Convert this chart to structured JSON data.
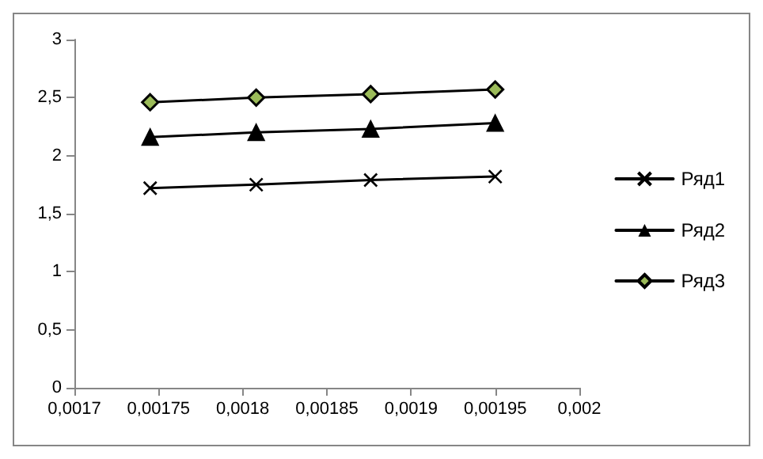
{
  "chart_data": {
    "type": "line",
    "xlim": [
      0.0017,
      0.002
    ],
    "xticks": [
      {
        "value": 0.0017,
        "label": "0,0017"
      },
      {
        "value": 0.00175,
        "label": "0,00175"
      },
      {
        "value": 0.0018,
        "label": "0,0018"
      },
      {
        "value": 0.00185,
        "label": "0,00185"
      },
      {
        "value": 0.0019,
        "label": "0,0019"
      },
      {
        "value": 0.00195,
        "label": "0,00195"
      },
      {
        "value": 0.002,
        "label": "0,002"
      }
    ],
    "ylim": [
      0,
      3
    ],
    "yticks": [
      0,
      {
        "value": 0.5,
        "label": "0,5"
      },
      1,
      {
        "value": 1.5,
        "label": "1,5"
      },
      2,
      {
        "value": 2.5,
        "label": "2,5"
      },
      3
    ],
    "x": [
      0.001745,
      0.001808,
      0.001876,
      0.00195
    ],
    "series": [
      {
        "name": "Ряд1",
        "color": "#000000",
        "marker": "cross",
        "values": [
          1.72,
          1.75,
          1.79,
          1.82
        ]
      },
      {
        "name": "Ряд2",
        "color": "#000000",
        "marker": "triangle",
        "values": [
          2.16,
          2.2,
          2.23,
          2.28
        ]
      },
      {
        "name": "Ряд3",
        "color": "#000000",
        "marker": "diamond",
        "values": [
          2.46,
          2.5,
          2.53,
          2.57
        ]
      }
    ],
    "grid": false,
    "legend": "right",
    "line_style": "solid"
  }
}
